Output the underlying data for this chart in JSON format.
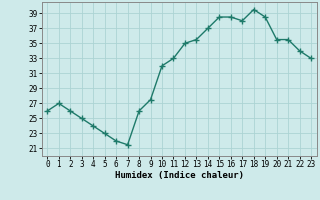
{
  "x": [
    0,
    1,
    2,
    3,
    4,
    5,
    6,
    7,
    8,
    9,
    10,
    11,
    12,
    13,
    14,
    15,
    16,
    17,
    18,
    19,
    20,
    21,
    22,
    23
  ],
  "y": [
    26,
    27,
    26,
    25,
    24,
    23,
    22,
    21.5,
    26,
    27.5,
    32,
    33,
    35,
    35.5,
    37,
    38.5,
    38.5,
    38,
    39.5,
    38.5,
    35.5,
    35.5,
    34,
    33
  ],
  "line_color": "#1e7a6a",
  "bg_color": "#ceeaea",
  "grid_color": "#acd4d4",
  "spine_color": "#888888",
  "axis_label": "Humidex (Indice chaleur)",
  "ylabel_ticks": [
    21,
    23,
    25,
    27,
    29,
    31,
    33,
    35,
    37,
    39
  ],
  "ylim": [
    20.0,
    40.5
  ],
  "xlim": [
    -0.5,
    23.5
  ],
  "xtick_labels": [
    "0",
    "1",
    "2",
    "3",
    "4",
    "5",
    "6",
    "7",
    "8",
    "9",
    "10",
    "11",
    "12",
    "13",
    "14",
    "15",
    "16",
    "17",
    "18",
    "19",
    "20",
    "21",
    "22",
    "23"
  ],
  "tick_fontsize": 5.5,
  "xlabel_fontsize": 6.5,
  "marker_style": "+",
  "marker_size": 4,
  "linewidth": 1.0
}
